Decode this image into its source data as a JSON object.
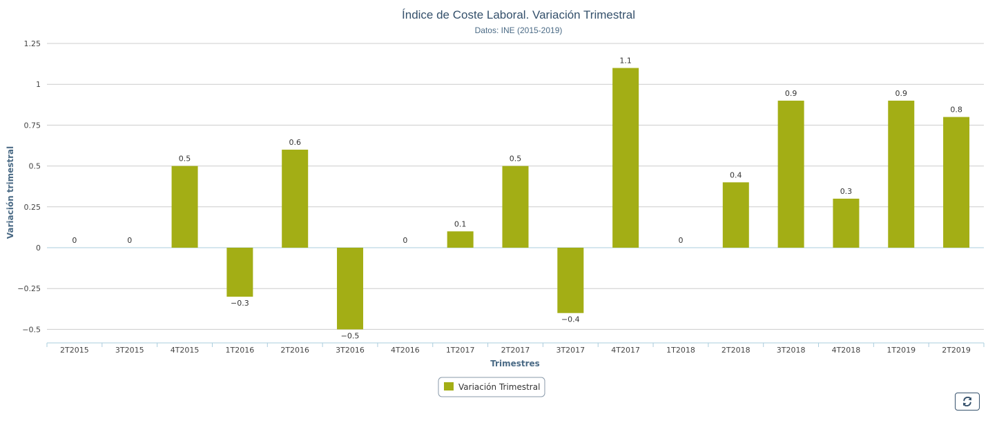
{
  "chart_data": {
    "type": "bar",
    "title": "Índice de Coste Laboral. Variación Trimestral",
    "subtitle": "Datos: INE (2015-2019)",
    "xlabel": "Trimestres",
    "ylabel": "Variación trimestral",
    "categories": [
      "2T2015",
      "3T2015",
      "4T2015",
      "1T2016",
      "2T2016",
      "3T2016",
      "4T2016",
      "1T2017",
      "2T2017",
      "3T2017",
      "4T2017",
      "1T2018",
      "2T2018",
      "3T2018",
      "4T2018",
      "1T2019",
      "2T2019"
    ],
    "series": [
      {
        "name": "Variación Trimestral",
        "values": [
          0,
          0,
          0.5,
          -0.3,
          0.6,
          -0.5,
          0,
          0.1,
          0.5,
          -0.4,
          1.1,
          0,
          0.4,
          0.9,
          0.3,
          0.9,
          0.8
        ],
        "labels": [
          "0",
          "0",
          "0.5",
          "−0.3",
          "0.6",
          "−0.5",
          "0",
          "0.1",
          "0.5",
          "−0.4",
          "1.1",
          "0",
          "0.4",
          "0.9",
          "0.3",
          "0.9",
          "0.8"
        ]
      }
    ],
    "yticks": [
      -0.5,
      -0.25,
      0,
      0.25,
      0.5,
      0.75,
      1,
      1.25
    ],
    "ytick_labels": [
      "−0.5",
      "−0.25",
      "0",
      "0.25",
      "0.5",
      "0.75",
      "1",
      "1.25"
    ],
    "ylim": [
      -0.5,
      1.25
    ],
    "grid": true,
    "legend_position": "bottom-center",
    "colors": {
      "bar": "#a3ae15",
      "grid": "#cccccc",
      "axis": "#aaccdd",
      "title": "#34506b",
      "axis_title": "#4a6a85"
    }
  },
  "ui": {
    "refresh_icon": "refresh-icon"
  }
}
